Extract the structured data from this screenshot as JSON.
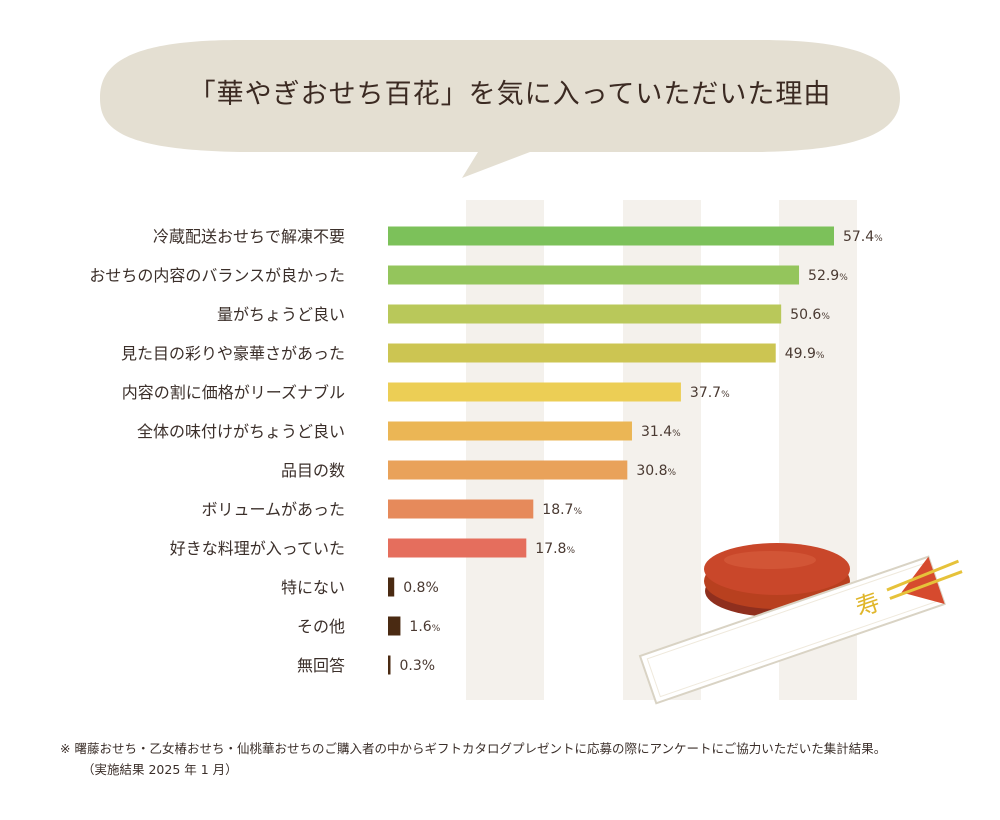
{
  "title": "「華やぎおせち百花」を気に入っていただいた理由",
  "footnote": {
    "line1": "※ 曙藤おせち・乙女椿おせち・仙桃華おせちのご購入者の中からギフトカタログプレゼントに応募の際にアンケートにご協力いただいた集計結果。",
    "line2": "（実施結果  2025 年 1 月）"
  },
  "chart_data": {
    "type": "bar",
    "orientation": "horizontal",
    "title": "「華やぎおせち百花」を気に入っていただいた理由",
    "unit": "%",
    "xlim": [
      0,
      70
    ],
    "categories": [
      "冷蔵配送おせちで解凍不要",
      "おせちの内容のバランスが良かった",
      "量がちょうど良い",
      "見た目の彩りや豪華さがあった",
      "内容の割に価格がリーズナブル",
      "全体の味付けがちょうど良い",
      "品目の数",
      "ボリュームがあった",
      "好きな料理が入っていた",
      "特にない",
      "その他",
      "無回答"
    ],
    "values": [
      57.4,
      52.9,
      50.6,
      49.9,
      37.7,
      31.4,
      30.8,
      18.7,
      17.8,
      0.8,
      1.6,
      0.3
    ],
    "value_labels": [
      "57.4",
      "52.9",
      "50.6",
      "49.9",
      "37.7",
      "31.4",
      "30.8",
      "18.7",
      "17.8",
      "0.8",
      "1.6",
      "0.3"
    ],
    "colors": [
      "#7cc15a",
      "#94c55c",
      "#b9c85a",
      "#ccc552",
      "#ecce55",
      "#ebb655",
      "#e9a25a",
      "#e68a5b",
      "#e56e5d",
      "#4a2a12",
      "#4a2a12",
      "#4a2a12"
    ],
    "label_style": [
      "small-pct",
      "small-pct",
      "small-pct",
      "small-pct",
      "small-pct",
      "small-pct",
      "small-pct",
      "small-pct",
      "small-pct",
      "pct",
      "small-pct",
      "pct"
    ]
  },
  "illustration": {
    "chopstick_wrapper_text": "寿",
    "lacquer_color": "#c9472a",
    "wrapper_accent": "#e6c23a"
  }
}
